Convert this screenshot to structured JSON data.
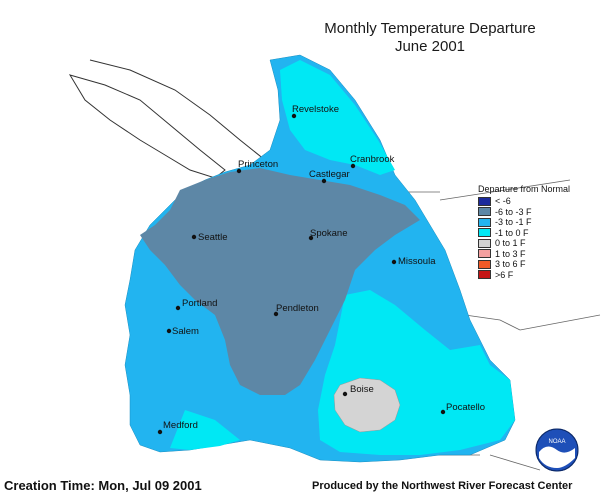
{
  "title": {
    "line1": "Monthly Temperature Departure",
    "line2": "June 2001"
  },
  "cities": [
    {
      "name": "Revelstoke"
    },
    {
      "name": "Princeton"
    },
    {
      "name": "Castlegar"
    },
    {
      "name": "Cranbrook"
    },
    {
      "name": "Seattle"
    },
    {
      "name": "Spokane"
    },
    {
      "name": "Missoula"
    },
    {
      "name": "Portland"
    },
    {
      "name": "Pendleton"
    },
    {
      "name": "Salem"
    },
    {
      "name": "Boise"
    },
    {
      "name": "Pocatello"
    },
    {
      "name": "Medford"
    }
  ],
  "legend": {
    "title": "Departure from Normal",
    "items": [
      {
        "label": "< -6",
        "color": "#1c2a9c"
      },
      {
        "label": "-6 to -3 F",
        "color": "#5d87a6"
      },
      {
        "label": "-3 to -1 F",
        "color": "#22b4f0"
      },
      {
        "label": "-1 to 0 F",
        "color": "#00e8f4"
      },
      {
        "label": "0 to 1 F",
        "color": "#d4d4d4"
      },
      {
        "label": "1 to 3 F",
        "color": "#f4a0a0"
      },
      {
        "label": "3 to 6 F",
        "color": "#f05a28"
      },
      {
        "label": ">6 F",
        "color": "#c41616"
      }
    ]
  },
  "footer": {
    "creation": "Creation Time: Mon, Jul 09 2001",
    "produced": "Produced by the Northwest River Forecast Center"
  },
  "logo": {
    "icon": "noaa-logo",
    "text": "NOAA"
  }
}
